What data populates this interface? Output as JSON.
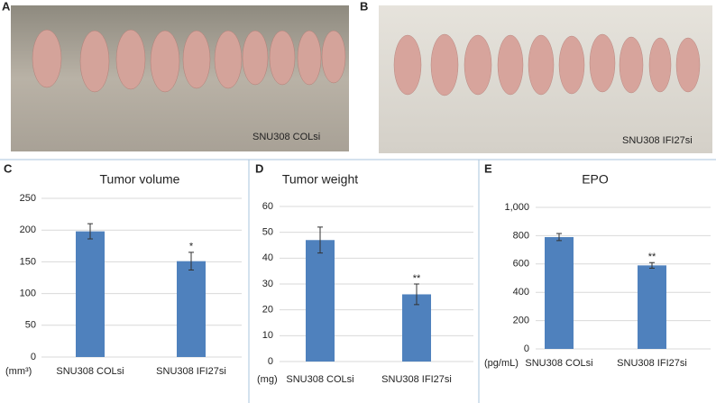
{
  "photos": [
    {
      "label": "A",
      "caption": "SNU308 COLsi"
    },
    {
      "label": "B",
      "caption": "SNU308 IFI27si"
    }
  ],
  "chart_data": [
    {
      "type": "bar",
      "panel_label": "C",
      "title": "Tumor volume",
      "unit_label": "(mm³)",
      "categories": [
        "SNU308 COLsi",
        "SNU308 IFI27si"
      ],
      "values": [
        198,
        151
      ],
      "errors": [
        12,
        14
      ],
      "annotations": [
        null,
        "*"
      ],
      "color": "#4f81bd",
      "ylim": [
        0,
        250
      ],
      "yticks": [
        0,
        50,
        100,
        150,
        200,
        250
      ],
      "grid": true
    },
    {
      "type": "bar",
      "panel_label": "D",
      "title": "Tumor weight",
      "unit_label": "(mg)",
      "categories": [
        "SNU308 COLsi",
        "SNU308 IFI27si"
      ],
      "values": [
        47,
        26
      ],
      "errors": [
        5,
        4
      ],
      "annotations": [
        null,
        "**"
      ],
      "color": "#4f81bd",
      "ylim": [
        0,
        60
      ],
      "yticks": [
        0,
        10,
        20,
        30,
        40,
        50,
        60
      ],
      "grid": true
    },
    {
      "type": "bar",
      "panel_label": "E",
      "title": "EPO",
      "unit_label": "(pg/mL)",
      "categories": [
        "SNU308 COLsi",
        "SNU308 IFI27si"
      ],
      "values": [
        790,
        590
      ],
      "errors": [
        25,
        20
      ],
      "annotations": [
        null,
        "**"
      ],
      "color": "#4f81bd",
      "ylim": [
        0,
        1000
      ],
      "yticks": [
        0,
        200,
        400,
        600,
        800,
        {
          "value": 1000,
          "label": "1,000"
        }
      ],
      "grid": true
    }
  ]
}
